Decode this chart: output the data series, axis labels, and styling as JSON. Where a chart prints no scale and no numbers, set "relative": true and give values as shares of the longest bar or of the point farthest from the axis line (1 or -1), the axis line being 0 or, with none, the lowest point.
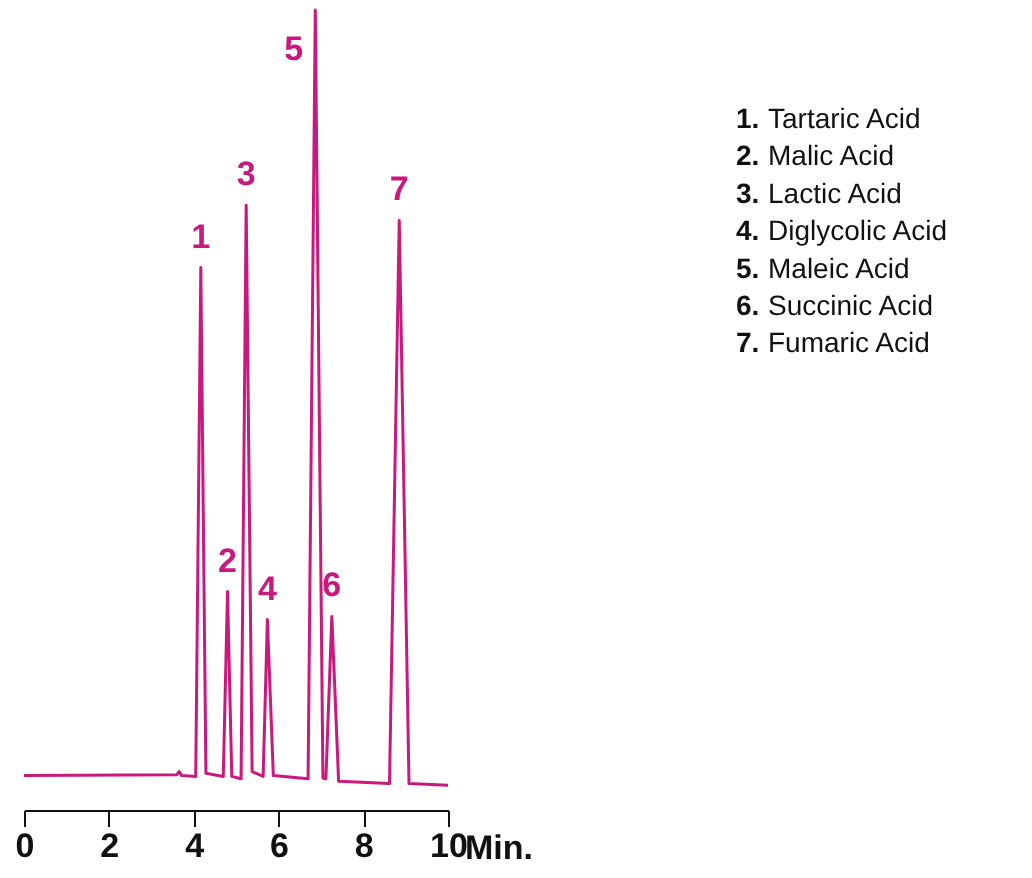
{
  "chart_data": {
    "type": "line",
    "relative": true,
    "xlabel": "Min.",
    "xlim": [
      0,
      10
    ],
    "xticks": [
      0,
      2,
      4,
      6,
      8,
      10
    ],
    "color": "#c8197d",
    "x": [
      0,
      3.6,
      3.66,
      3.72,
      4.05,
      4.17,
      4.29,
      4.7,
      4.8,
      4.9,
      5.12,
      5.24,
      5.38,
      5.64,
      5.74,
      5.88,
      6.7,
      6.87,
      7.05,
      7.12,
      7.26,
      7.42,
      8.62,
      8.85,
      9.08,
      10
    ],
    "values": [
      0.043,
      0.044,
      0.048,
      0.043,
      0.042,
      0.678,
      0.046,
      0.042,
      0.273,
      0.042,
      0.039,
      0.756,
      0.048,
      0.042,
      0.238,
      0.043,
      0.039,
      1.0,
      0.04,
      0.039,
      0.242,
      0.036,
      0.033,
      0.737,
      0.033,
      0.031
    ],
    "annotations": [
      {
        "text": "1",
        "x": 4.17,
        "y": 0.678
      },
      {
        "text": "2",
        "x": 4.8,
        "y": 0.273
      },
      {
        "text": "3",
        "x": 5.24,
        "y": 0.756
      },
      {
        "text": "4",
        "x": 5.74,
        "y": 0.238
      },
      {
        "text": "5",
        "x": 6.87,
        "y": 1.0
      },
      {
        "text": "6",
        "x": 7.26,
        "y": 0.242
      },
      {
        "text": "7",
        "x": 8.85,
        "y": 0.737
      },
      "1. Tartaric Acid",
      "2. Malic Acid",
      "3. Lactic Acid",
      "4. Diglycolic Acid",
      "5. Maleic Acid",
      "6. Succinic Acid",
      "7. Fumaric Acid"
    ]
  }
}
